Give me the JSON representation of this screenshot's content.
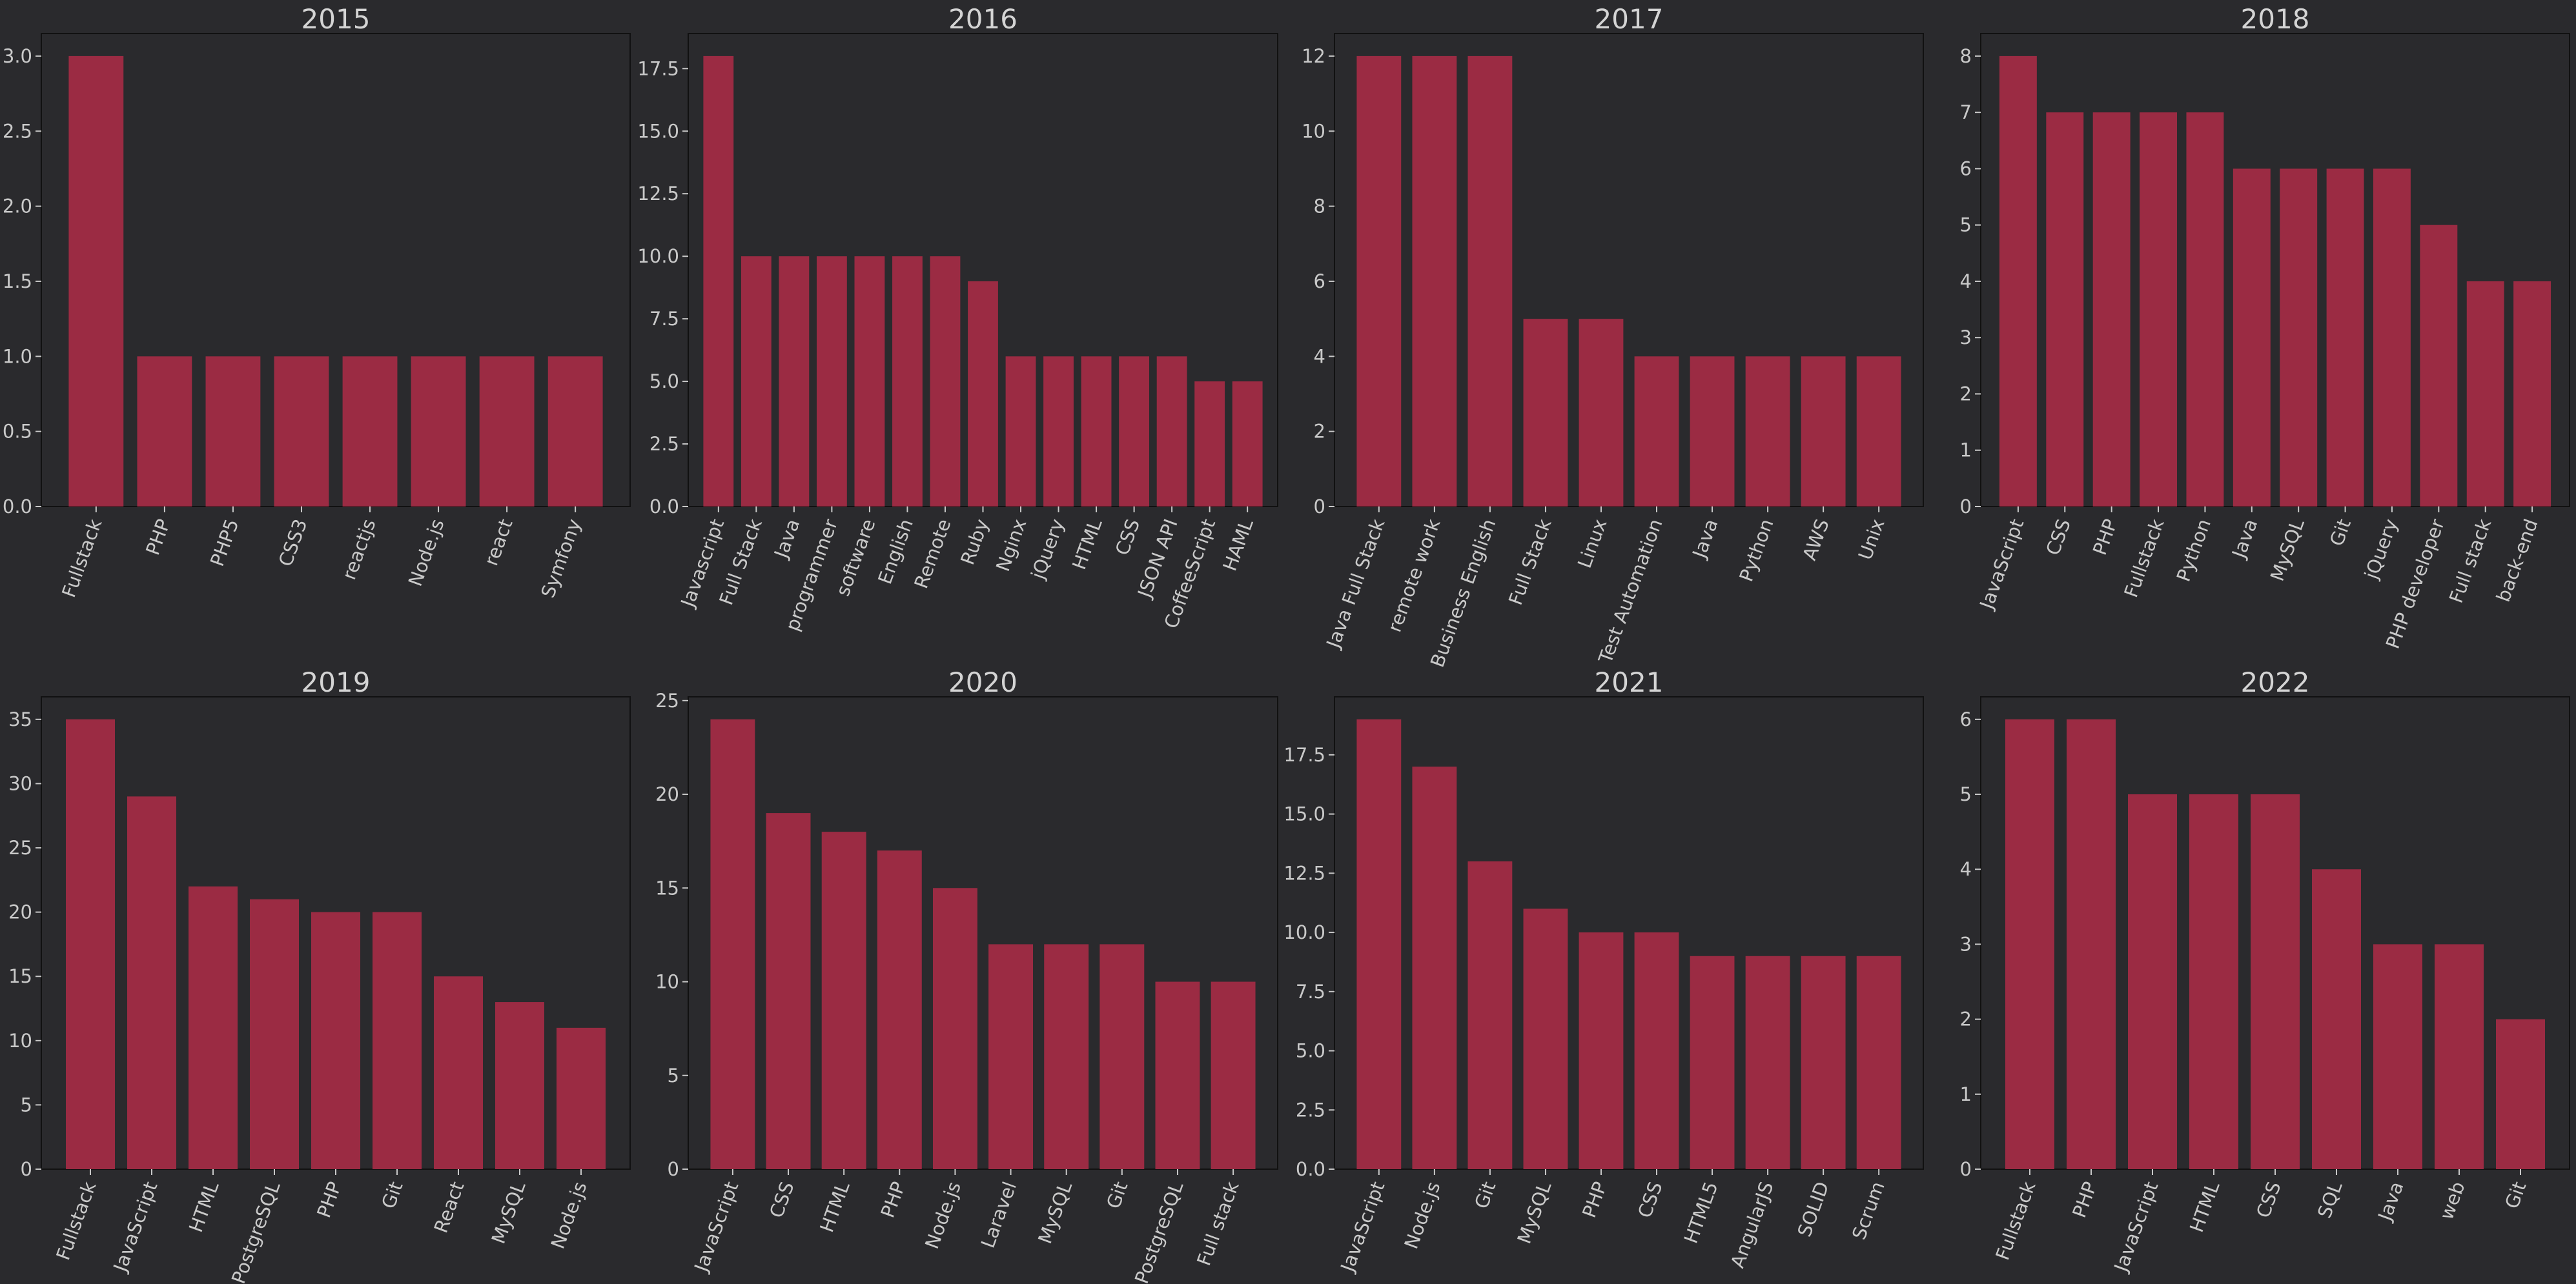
{
  "colors": {
    "background": "#2a2a2d",
    "bar": "#9b2b43",
    "text": "#c9c9c9",
    "axis": "#111111"
  },
  "chart_data": [
    {
      "type": "bar",
      "title": "2015",
      "categories": [
        "Fullstack",
        "PHP",
        "PHP5",
        "CSS3",
        "reactjs",
        "Node.js",
        "react",
        "Symfony"
      ],
      "values": [
        3,
        1,
        1,
        1,
        1,
        1,
        1,
        1
      ],
      "ylim": [
        0,
        3.15
      ],
      "yticks": [
        0,
        0.5,
        1.0,
        1.5,
        2.0,
        2.5,
        3.0
      ],
      "tick_labels": [
        "0.0",
        "0.5",
        "1.0",
        "1.5",
        "2.0",
        "2.5",
        "3.0"
      ],
      "grid": false
    },
    {
      "type": "bar",
      "title": "2016",
      "categories": [
        "Javascript",
        "Full Stack",
        "Java",
        "programmer",
        "software",
        "English",
        "Remote",
        "Ruby",
        "Nginx",
        "jQuery",
        "HTML",
        "CSS",
        "JSON API",
        "CoffeeScript",
        "HAML"
      ],
      "values": [
        18,
        10,
        10,
        10,
        10,
        10,
        10,
        9,
        6,
        6,
        6,
        6,
        6,
        5,
        5
      ],
      "ylim": [
        0,
        18.9
      ],
      "yticks": [
        0,
        2.5,
        5.0,
        7.5,
        10.0,
        12.5,
        15.0,
        17.5
      ],
      "tick_labels": [
        "0.0",
        "2.5",
        "5.0",
        "7.5",
        "10.0",
        "12.5",
        "15.0",
        "17.5"
      ],
      "grid": false
    },
    {
      "type": "bar",
      "title": "2017",
      "categories": [
        "Java Full Stack",
        "remote work",
        "Business English",
        "Full Stack",
        "Linux",
        "Test Automation",
        "Java",
        "Python",
        "AWS",
        "Unix"
      ],
      "values": [
        12,
        12,
        12,
        5,
        5,
        4,
        4,
        4,
        4,
        4
      ],
      "ylim": [
        0,
        12.6
      ],
      "yticks": [
        0,
        2,
        4,
        6,
        8,
        10,
        12
      ],
      "tick_labels": [
        "0",
        "2",
        "4",
        "6",
        "8",
        "10",
        "12"
      ],
      "grid": false
    },
    {
      "type": "bar",
      "title": "2018",
      "categories": [
        "JavaScript",
        "CSS",
        "PHP",
        "Fullstack",
        "Python",
        "Java",
        "MySQL",
        "Git",
        "jQuery",
        "PHP developer",
        "Full stack",
        "back-end"
      ],
      "values": [
        8,
        7,
        7,
        7,
        7,
        6,
        6,
        6,
        6,
        5,
        4,
        4
      ],
      "ylim": [
        0,
        8.4
      ],
      "yticks": [
        0,
        1,
        2,
        3,
        4,
        5,
        6,
        7,
        8
      ],
      "tick_labels": [
        "0",
        "1",
        "2",
        "3",
        "4",
        "5",
        "6",
        "7",
        "8"
      ],
      "grid": false
    },
    {
      "type": "bar",
      "title": "2019",
      "categories": [
        "Fullstack",
        "JavaScript",
        "HTML",
        "PostgreSQL",
        "PHP",
        "Git",
        "React",
        "MySQL",
        "Node.js"
      ],
      "values": [
        35,
        29,
        22,
        21,
        20,
        20,
        15,
        13,
        11
      ],
      "ylim": [
        0,
        36.75
      ],
      "yticks": [
        0,
        5,
        10,
        15,
        20,
        25,
        30,
        35
      ],
      "tick_labels": [
        "0",
        "5",
        "10",
        "15",
        "20",
        "25",
        "30",
        "35"
      ],
      "grid": false
    },
    {
      "type": "bar",
      "title": "2020",
      "categories": [
        "JavaScript",
        "CSS",
        "HTML",
        "PHP",
        "Node.js",
        "Laravel",
        "MySQL",
        "Git",
        "PostgreSQL",
        "Full stack"
      ],
      "values": [
        24,
        19,
        18,
        17,
        15,
        12,
        12,
        12,
        10,
        10
      ],
      "ylim": [
        0,
        25.2
      ],
      "yticks": [
        0,
        5,
        10,
        15,
        20,
        25
      ],
      "tick_labels": [
        "0",
        "5",
        "10",
        "15",
        "20",
        "25"
      ],
      "grid": false
    },
    {
      "type": "bar",
      "title": "2021",
      "categories": [
        "JavaScript",
        "Node.js",
        "Git",
        "MySQL",
        "PHP",
        "CSS",
        "HTML5",
        "AngularJS",
        "SOLID",
        "Scrum"
      ],
      "values": [
        19,
        17,
        13,
        11,
        10,
        10,
        9,
        9,
        9,
        9
      ],
      "ylim": [
        0,
        19.95
      ],
      "yticks": [
        0,
        2.5,
        5.0,
        7.5,
        10.0,
        12.5,
        15.0,
        17.5
      ],
      "tick_labels": [
        "0.0",
        "2.5",
        "5.0",
        "7.5",
        "10.0",
        "12.5",
        "15.0",
        "17.5"
      ],
      "grid": false
    },
    {
      "type": "bar",
      "title": "2022",
      "categories": [
        "Fullstack",
        "PHP",
        "JavaScript",
        "HTML",
        "CSS",
        "SQL",
        "Java",
        "web",
        "Git"
      ],
      "values": [
        6,
        6,
        5,
        5,
        5,
        4,
        3,
        3,
        2
      ],
      "ylim": [
        0,
        6.3
      ],
      "yticks": [
        0,
        1,
        2,
        3,
        4,
        5,
        6
      ],
      "tick_labels": [
        "0",
        "1",
        "2",
        "3",
        "4",
        "5",
        "6"
      ],
      "grid": false
    }
  ]
}
